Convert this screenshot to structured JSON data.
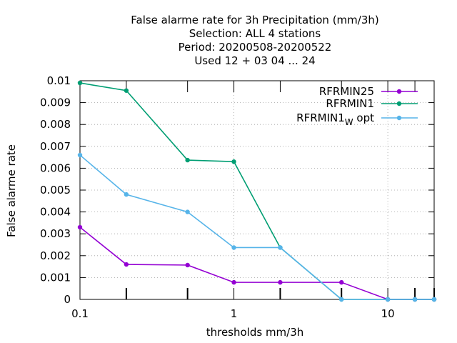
{
  "chart_data": {
    "type": "line",
    "title_lines": [
      "False alarme rate  for 3h Precipitation (mm/3h)",
      "Selection: ALL      4 stations",
      "Period: 20200508-20200522",
      "Used  12 + 03 04 ... 24"
    ],
    "xlabel": "thresholds mm/3h",
    "ylabel": "False alarme rate",
    "x_scale": "log",
    "xlim": [
      0.1,
      20
    ],
    "ylim": [
      0,
      0.01
    ],
    "x_tick_labels": [
      {
        "value": 0.1,
        "label": "0.1"
      },
      {
        "value": 1,
        "label": "1"
      },
      {
        "value": 10,
        "label": "10"
      }
    ],
    "y_tick_labels": [
      {
        "value": 0,
        "label": "0"
      },
      {
        "value": 0.001,
        "label": "0.001"
      },
      {
        "value": 0.002,
        "label": "0.002"
      },
      {
        "value": 0.003,
        "label": "0.003"
      },
      {
        "value": 0.004,
        "label": "0.004"
      },
      {
        "value": 0.005,
        "label": "0.005"
      },
      {
        "value": 0.006,
        "label": "0.006"
      },
      {
        "value": 0.007,
        "label": "0.007"
      },
      {
        "value": 0.008,
        "label": "0.008"
      },
      {
        "value": 0.009,
        "label": "0.009"
      },
      {
        "value": 0.01,
        "label": "0.01"
      }
    ],
    "x_minor_ticks": [
      0.2,
      0.5,
      2,
      5,
      15,
      20
    ],
    "grid": true,
    "legend_position": "top-right",
    "series": [
      {
        "name": "RFRMIN25",
        "color": "#9400d3",
        "x": [
          0.1,
          0.2,
          0.5,
          1,
          2,
          5,
          10,
          15,
          20
        ],
        "y": [
          0.0033,
          0.0016,
          0.00157,
          0.00078,
          0.00078,
          0.00078,
          0,
          0,
          0
        ]
      },
      {
        "name": "RFRMIN1",
        "color": "#009e73",
        "x": [
          0.1,
          0.2,
          0.5,
          1,
          2,
          5,
          10,
          15,
          20
        ],
        "y": [
          0.0099,
          0.00955,
          0.00637,
          0.0063,
          0.00237,
          0,
          0,
          0,
          0
        ]
      },
      {
        "name": "RFRMIN1",
        "name_subscript": "W",
        "name_suffix": " opt",
        "color": "#56b4e9",
        "x": [
          0.1,
          0.2,
          0.5,
          1,
          2,
          5,
          10,
          15,
          20
        ],
        "y": [
          0.0066,
          0.0048,
          0.004,
          0.00237,
          0.00237,
          0,
          0,
          0,
          0
        ]
      }
    ]
  }
}
